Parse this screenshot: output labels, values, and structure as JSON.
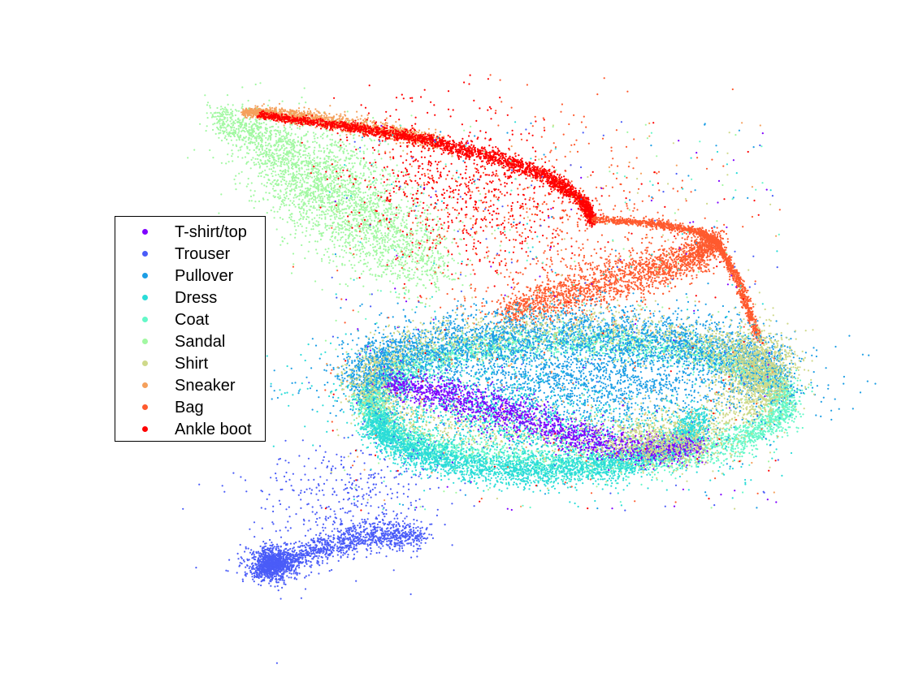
{
  "chart_data": {
    "type": "scatter",
    "title": "",
    "xlabel": "",
    "ylabel": "",
    "axes_visible": false,
    "grid": false,
    "legend_position": "left",
    "series": [
      {
        "name": "T-shirt/top",
        "color": "#7f00ff"
      },
      {
        "name": "Trouser",
        "color": "#4a5cf8"
      },
      {
        "name": "Pullover",
        "color": "#1c9ee5"
      },
      {
        "name": "Dress",
        "color": "#2adcd8"
      },
      {
        "name": "Coat",
        "color": "#64f8c8"
      },
      {
        "name": "Sandal",
        "color": "#a2f8a2"
      },
      {
        "name": "Shirt",
        "color": "#cfd98a"
      },
      {
        "name": "Sneaker",
        "color": "#f5a05c"
      },
      {
        "name": "Bag",
        "color": "#ff5a2e"
      },
      {
        "name": "Ankle boot",
        "color": "#ff0000"
      }
    ]
  }
}
